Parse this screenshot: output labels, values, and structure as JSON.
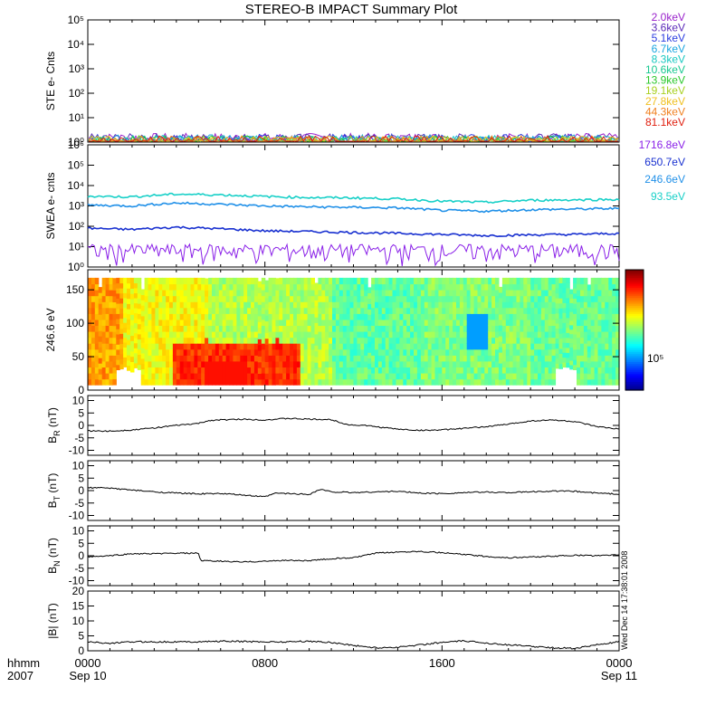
{
  "title": "STEREO-B IMPACT Summary Plot",
  "timestamp_vertical": "Wed Dec 14 17:38:01 2008",
  "chart_data": [
    {
      "type": "line",
      "panel": "ste",
      "ylabel": "STE e- Cnts",
      "yscale": "log",
      "ylim_exp": [
        0,
        5
      ],
      "yticks": [
        {
          "label": "10⁰",
          "exp": 0
        },
        {
          "label": "10¹",
          "exp": 1
        },
        {
          "label": "10²",
          "exp": 2
        },
        {
          "label": "10³",
          "exp": 3
        },
        {
          "label": "10⁴",
          "exp": 4
        },
        {
          "label": "10⁵",
          "exp": 5
        }
      ],
      "series": [
        {
          "name": "2.0keV",
          "color": "#9a22cc",
          "level": 1.5
        },
        {
          "name": "3.6keV",
          "color": "#5a2ab8",
          "level": 1.4
        },
        {
          "name": "5.1keV",
          "color": "#2a3ce0",
          "level": 1.3
        },
        {
          "name": "6.7keV",
          "color": "#1aa6e0",
          "level": 1.2
        },
        {
          "name": "8.3keV",
          "color": "#18c8c0",
          "level": 1.1
        },
        {
          "name": "10.6keV",
          "color": "#18c890",
          "level": 1.0
        },
        {
          "name": "13.9keV",
          "color": "#2ac82a",
          "level": 1.0
        },
        {
          "name": "19.1keV",
          "color": "#a8d020",
          "level": 1.0
        },
        {
          "name": "27.8keV",
          "color": "#f0c020",
          "level": 1.0
        },
        {
          "name": "44.3keV",
          "color": "#f08020",
          "level": 1.0
        },
        {
          "name": "81.1keV",
          "color": "#e02010",
          "level": 1.0
        }
      ]
    },
    {
      "type": "line",
      "panel": "swea",
      "ylabel": "SWEA e- cnts",
      "yscale": "log",
      "ylim_exp": [
        0,
        6
      ],
      "yticks": [
        {
          "label": "10⁰",
          "exp": 0
        },
        {
          "label": "10¹",
          "exp": 1
        },
        {
          "label": "10²",
          "exp": 2
        },
        {
          "label": "10³",
          "exp": 3
        },
        {
          "label": "10⁴",
          "exp": 4
        },
        {
          "label": "10⁵",
          "exp": 5
        },
        {
          "label": "10⁶",
          "exp": 6
        }
      ],
      "series": [
        {
          "name": "1716.8eV",
          "color": "#8a20e8",
          "x": [
            0,
            2,
            4,
            6,
            8,
            10,
            12,
            14,
            16,
            18,
            20,
            22,
            24
          ],
          "y": [
            5,
            5,
            5,
            5,
            5,
            5,
            5,
            5,
            5,
            5,
            5,
            5,
            5
          ],
          "noise": true
        },
        {
          "name": "650.7eV",
          "color": "#1830d0",
          "x": [
            0,
            2,
            4,
            6,
            8,
            10,
            12,
            14,
            16,
            18,
            20,
            22,
            24
          ],
          "y": [
            80,
            70,
            90,
            75,
            60,
            55,
            50,
            45,
            40,
            35,
            38,
            40,
            45
          ]
        },
        {
          "name": "246.6eV",
          "color": "#2090e8",
          "x": [
            0,
            2,
            4,
            6,
            8,
            10,
            12,
            14,
            16,
            18,
            20,
            22,
            24
          ],
          "y": [
            1100,
            1000,
            1400,
            1200,
            1000,
            900,
            850,
            800,
            600,
            550,
            650,
            700,
            750
          ]
        },
        {
          "name": "93.5eV",
          "color": "#18d0c8",
          "x": [
            0,
            2,
            4,
            6,
            8,
            10,
            12,
            14,
            16,
            18,
            20,
            22,
            24
          ],
          "y": [
            3000,
            2800,
            3800,
            3500,
            2900,
            2600,
            2500,
            2200,
            1700,
            1500,
            1900,
            2000,
            2100
          ]
        }
      ]
    },
    {
      "type": "heatmap",
      "panel": "pad",
      "ylabel": "246.6 eV",
      "ylim": [
        0,
        180
      ],
      "yticks": [
        0,
        50,
        100,
        150
      ],
      "colorbar_label": "10⁵"
    },
    {
      "type": "line",
      "panel": "br",
      "ylabel": "B",
      "ylabel_sub": "R",
      "ylabel_unit": "(nT)",
      "ylim": [
        -12,
        12
      ],
      "yticks": [
        -10,
        -5,
        0,
        5,
        10
      ],
      "x": [
        0,
        1,
        2,
        3,
        4,
        5,
        5.5,
        6,
        7,
        8,
        9,
        10,
        11,
        11.8,
        12.5,
        13,
        14,
        15,
        16,
        17,
        18,
        19,
        20,
        21,
        22,
        23,
        24
      ],
      "y": [
        -2.2,
        -2.3,
        -1.8,
        -1,
        0,
        0.8,
        2,
        2.2,
        2.5,
        2.2,
        2.8,
        2.5,
        2.3,
        0.2,
        0,
        -0.5,
        -1.5,
        -2,
        -1.8,
        -1.2,
        -0.5,
        0.5,
        1.8,
        2.2,
        1.5,
        -0.5,
        -1.5
      ]
    },
    {
      "type": "line",
      "panel": "bt",
      "ylabel": "B",
      "ylabel_sub": "T",
      "ylabel_unit": "(nT)",
      "ylim": [
        -12,
        12
      ],
      "yticks": [
        -10,
        -5,
        0,
        5,
        10
      ],
      "x": [
        0,
        1,
        2,
        3,
        4,
        5,
        6,
        7,
        8,
        8.5,
        9,
        10,
        10.5,
        11,
        12,
        13,
        14,
        15,
        16,
        17,
        18,
        19,
        20,
        21,
        22,
        23,
        24
      ],
      "y": [
        1.2,
        1,
        0.2,
        -0.5,
        -1,
        -1.3,
        -1.2,
        -1.8,
        -2.5,
        -1,
        -1.2,
        -1.5,
        0.5,
        -0.5,
        -0.8,
        -0.5,
        -0.3,
        -1,
        -1.2,
        -0.8,
        -0.6,
        -0.8,
        -0.5,
        -0.2,
        -0.3,
        -1,
        -1.4
      ]
    },
    {
      "type": "line",
      "panel": "bn",
      "ylabel": "B",
      "ylabel_sub": "N",
      "ylabel_unit": "(nT)",
      "ylim": [
        -12,
        12
      ],
      "yticks": [
        -10,
        -5,
        0,
        5,
        10
      ],
      "x": [
        0,
        1,
        2,
        3,
        4,
        5,
        5.1,
        6,
        7,
        8,
        9,
        10,
        11,
        12,
        13,
        14,
        15,
        16,
        17,
        18,
        19,
        20,
        21,
        22,
        23,
        24
      ],
      "y": [
        -0.5,
        0,
        0.8,
        0.8,
        1,
        1,
        -2,
        -2.2,
        -2.5,
        -2.2,
        -1.8,
        -2,
        -1.2,
        -0.8,
        1,
        1.5,
        1.8,
        1.2,
        0.5,
        -0.3,
        -0.8,
        -0.5,
        -0.2,
        0.2,
        0,
        0.4
      ]
    },
    {
      "type": "line",
      "panel": "bmag",
      "ylabel": "|B|",
      "ylabel_unit": "(nT)",
      "ylim": [
        0,
        20
      ],
      "yticks": [
        0,
        5,
        10,
        15,
        20
      ],
      "x": [
        0,
        1,
        2,
        3,
        4,
        5,
        6,
        7,
        8,
        9,
        10,
        11,
        12,
        13,
        14,
        15,
        16,
        17,
        18,
        19,
        20,
        21,
        22,
        23,
        24
      ],
      "y": [
        3,
        2.5,
        3,
        3,
        3,
        3,
        3.2,
        3.1,
        3,
        3,
        3.2,
        2.8,
        1.8,
        1,
        1.2,
        2,
        2.8,
        3.3,
        2.6,
        2,
        1.5,
        1,
        0.8,
        2,
        3
      ]
    }
  ],
  "x_axis": {
    "corner_top": "hhmm",
    "corner_bottom": "2007",
    "ticks": [
      {
        "label": "0000",
        "sub": "Sep 10",
        "hour": 0
      },
      {
        "label": "0800",
        "sub": "",
        "hour": 8
      },
      {
        "label": "1600",
        "sub": "",
        "hour": 16
      },
      {
        "label": "0000",
        "sub": "Sep 11",
        "hour": 24
      }
    ]
  }
}
